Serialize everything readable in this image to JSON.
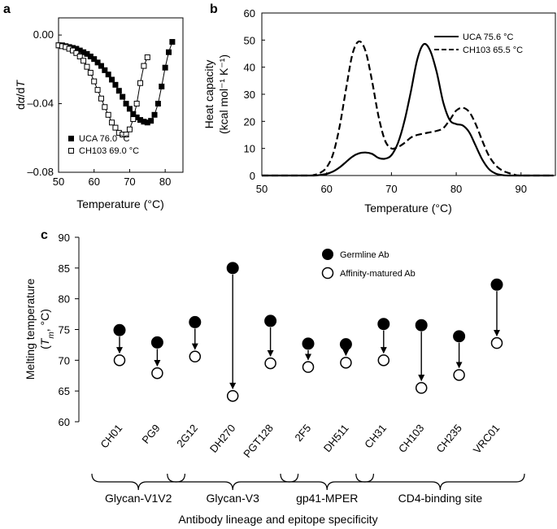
{
  "panels": {
    "a": {
      "label": "a"
    },
    "b": {
      "label": "b"
    },
    "c": {
      "label": "c"
    }
  },
  "chart_data": [
    {
      "panel": "a",
      "type": "scatter",
      "xlabel": "Temperature (°C)",
      "ylabel": "dα/dT",
      "xlim": [
        50,
        85
      ],
      "ylim": [
        -0.08,
        0.01
      ],
      "xticks": [
        50,
        60,
        70,
        80
      ],
      "yticks": [
        0.0,
        -0.04,
        -0.08
      ],
      "ytick_labels": [
        "0.00",
        "–0.04",
        "–0.08"
      ],
      "legend_position": "bottom-left",
      "series": [
        {
          "name": "UCA 76.0 °C",
          "marker": "filled-square",
          "x": [
            50,
            51,
            52,
            53,
            54,
            55,
            56,
            57,
            58,
            59,
            60,
            61,
            62,
            63,
            64,
            65,
            66,
            67,
            68,
            69,
            70,
            71,
            72,
            73,
            74,
            75,
            76,
            77,
            78,
            79,
            80,
            81,
            82
          ],
          "y": [
            -0.006,
            -0.006,
            -0.0065,
            -0.007,
            -0.0075,
            -0.008,
            -0.009,
            -0.01,
            -0.011,
            -0.0125,
            -0.014,
            -0.016,
            -0.018,
            -0.0205,
            -0.023,
            -0.026,
            -0.029,
            -0.0325,
            -0.036,
            -0.04,
            -0.043,
            -0.046,
            -0.048,
            -0.0495,
            -0.0505,
            -0.051,
            -0.05,
            -0.0465,
            -0.04,
            -0.03,
            -0.019,
            -0.01,
            -0.004
          ]
        },
        {
          "name": "CH103 69.0 °C",
          "marker": "open-square",
          "x": [
            50,
            51,
            52,
            53,
            54,
            55,
            56,
            57,
            58,
            59,
            60,
            61,
            62,
            63,
            64,
            65,
            66,
            67,
            68,
            69,
            70,
            71,
            72,
            73,
            74,
            75
          ],
          "y": [
            -0.006,
            -0.0065,
            -0.007,
            -0.008,
            -0.009,
            -0.0105,
            -0.0125,
            -0.015,
            -0.0185,
            -0.022,
            -0.027,
            -0.032,
            -0.037,
            -0.042,
            -0.0465,
            -0.051,
            -0.054,
            -0.057,
            -0.058,
            -0.058,
            -0.055,
            -0.049,
            -0.04,
            -0.028,
            -0.018,
            -0.013
          ]
        }
      ]
    },
    {
      "panel": "b",
      "type": "line",
      "xlabel": "Temperature (°C)",
      "ylabel_line1": "Heat capacity",
      "ylabel_line2": "(kcal mol⁻¹ K⁻¹)",
      "xlim": [
        50,
        95
      ],
      "ylim": [
        0,
        60
      ],
      "xticks": [
        50,
        60,
        70,
        80,
        90
      ],
      "yticks": [
        0,
        10,
        20,
        30,
        40,
        50,
        60
      ],
      "legend_position": "top-right",
      "series": [
        {
          "name": "UCA 75.6 °C",
          "style": "solid",
          "x": [
            50,
            56,
            58,
            59,
            60,
            61,
            62,
            63,
            64,
            65,
            66,
            67,
            68,
            69,
            70,
            71,
            72,
            73,
            74,
            75,
            76,
            77,
            78,
            79,
            80,
            81,
            82,
            83,
            84,
            85,
            86,
            87,
            88,
            90,
            95
          ],
          "y": [
            0,
            0,
            0,
            0.2,
            0.6,
            1.5,
            3,
            5,
            7,
            8.2,
            8.5,
            8,
            6.5,
            6.2,
            7.5,
            12,
            20,
            31,
            43,
            48.5,
            46,
            38,
            27,
            20.5,
            19,
            18.5,
            16,
            11,
            6,
            2.5,
            0.8,
            0.2,
            0,
            0,
            0
          ]
        },
        {
          "name": "CH103 65.5 °C",
          "style": "dashed",
          "x": [
            50,
            57,
            58,
            59,
            60,
            61,
            62,
            63,
            64,
            65,
            66,
            67,
            68,
            69,
            70,
            71,
            72,
            73,
            74,
            75,
            76,
            77,
            78,
            79,
            80,
            81,
            82,
            83,
            84,
            85,
            86,
            87,
            88,
            89,
            90,
            95
          ],
          "y": [
            0,
            0,
            0.2,
            1,
            3,
            8,
            18,
            32,
            45,
            49.5,
            46,
            35,
            22,
            13,
            10,
            10.5,
            12,
            14,
            15,
            15.5,
            16,
            16.5,
            17.5,
            20.5,
            24,
            25,
            23.5,
            19,
            13,
            7.5,
            4,
            2,
            1,
            0.3,
            0,
            0
          ]
        }
      ]
    },
    {
      "panel": "c",
      "type": "scatter",
      "ylabel_line1": "Melting temperature",
      "ylabel_line2": "(Tm, °C)",
      "xlabel": "Antibody lineage and epitope specificity",
      "ylim": [
        60,
        90
      ],
      "yticks": [
        60,
        65,
        70,
        75,
        80,
        85,
        90
      ],
      "legend_position": "top-right",
      "legend": [
        "Germline Ab",
        "Affinity-matured Ab"
      ],
      "categories": [
        "CH01",
        "PG9",
        "2G12",
        "DH270",
        "PGT128",
        "2F5",
        "DH511",
        "CH31",
        "CH103",
        "CH235",
        "VRC01"
      ],
      "series": [
        {
          "name": "Germline Ab",
          "marker": "filled-circle",
          "values": [
            74.9,
            72.9,
            76.2,
            85.0,
            76.4,
            72.7,
            72.6,
            75.9,
            75.7,
            73.9,
            82.3
          ]
        },
        {
          "name": "Affinity-matured Ab",
          "marker": "open-circle",
          "values": [
            70.0,
            67.9,
            70.6,
            64.2,
            69.5,
            68.9,
            69.6,
            70.0,
            65.5,
            67.6,
            72.8
          ]
        }
      ],
      "groups": [
        {
          "label": "Glycan-V1V2",
          "from": 0,
          "to": 1
        },
        {
          "label": "Glycan-V3",
          "from": 2,
          "to": 4
        },
        {
          "label": "gp41-MPER",
          "from": 5,
          "to": 6
        },
        {
          "label": "CD4-binding site",
          "from": 7,
          "to": 10
        }
      ]
    }
  ]
}
